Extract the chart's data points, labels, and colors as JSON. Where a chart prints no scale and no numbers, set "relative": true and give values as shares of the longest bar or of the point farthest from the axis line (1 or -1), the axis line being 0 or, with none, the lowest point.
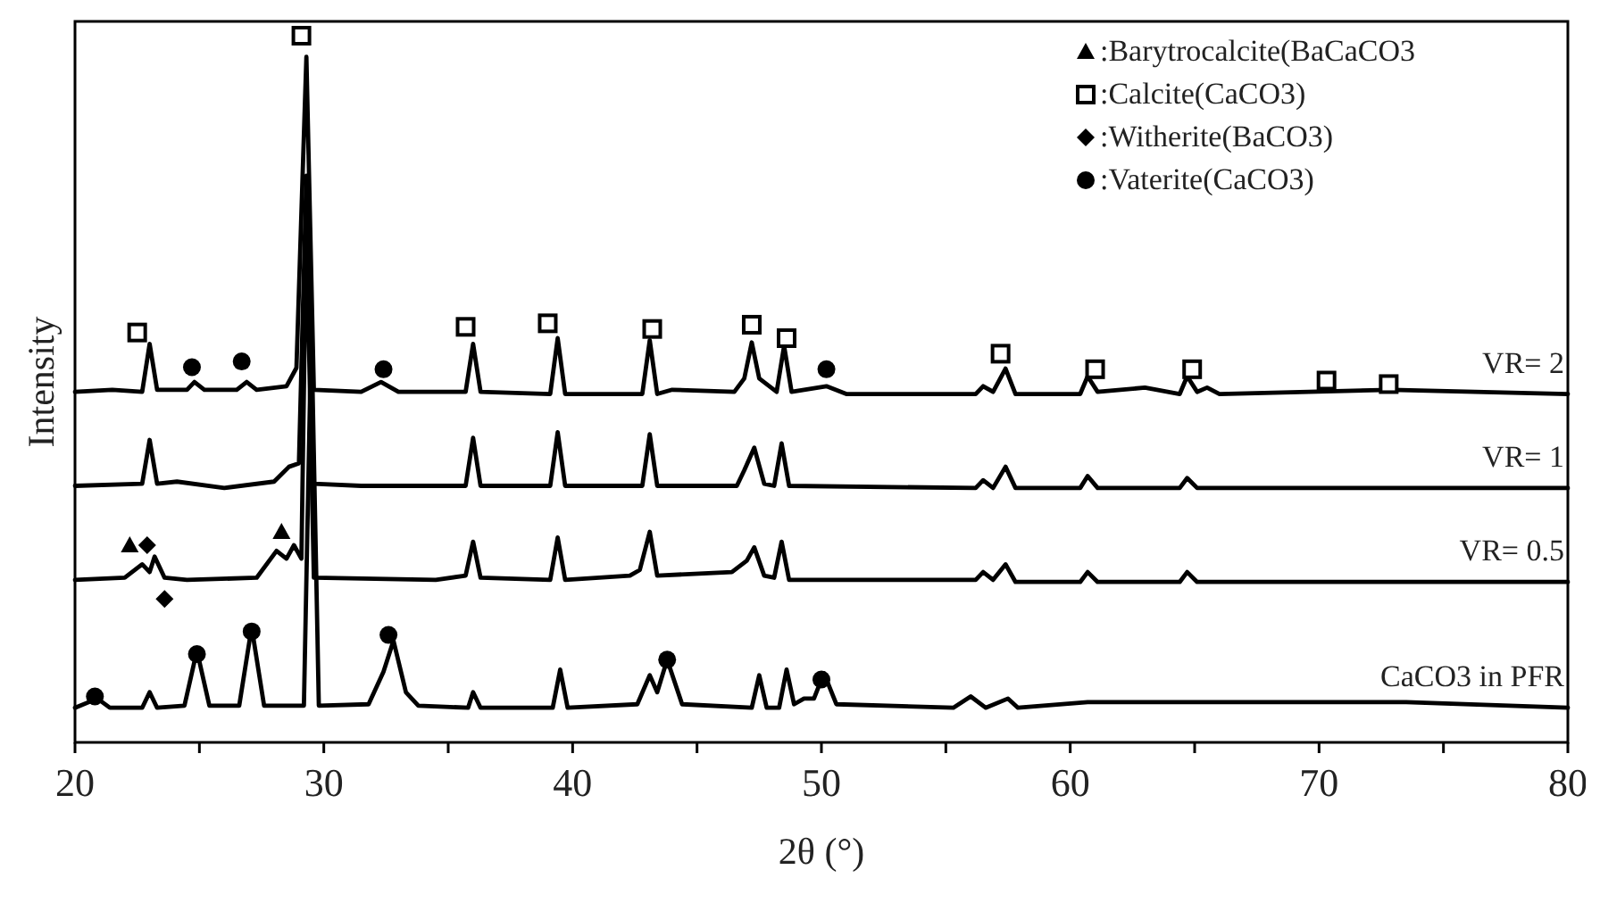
{
  "chart_data": {
    "type": "line",
    "relative": true,
    "xlabel": "2θ (°)",
    "ylabel": "Intensity",
    "xlim": [
      20,
      80
    ],
    "xticks": [
      20,
      {
        "value": 25,
        "label": null
      },
      30,
      {
        "value": 35,
        "label": null
      },
      40,
      {
        "value": 45,
        "label": null
      },
      50,
      {
        "value": 55,
        "label": null
      },
      60,
      {
        "value": 65,
        "label": null
      },
      70,
      {
        "value": 75,
        "label": null
      },
      80
    ],
    "grid": false,
    "legend": "top right",
    "line_style": "solid",
    "series": [
      {
        "name": "VR= 2",
        "color": "#000000",
        "x": [
          20,
          21.5,
          22.7,
          23.0,
          23.3,
          24.5,
          24.8,
          25.2,
          26.5,
          26.9,
          27.3,
          28.5,
          28.9,
          29.3,
          29.6,
          31.5,
          32.3,
          33,
          35.7,
          36.0,
          36.3,
          39.1,
          39.4,
          39.7,
          42.8,
          43.1,
          43.4,
          44,
          46.5,
          46.9,
          47.2,
          47.5,
          48.2,
          48.5,
          48.8,
          50.2,
          51,
          56.2,
          56.5,
          56.9,
          57.4,
          57.8,
          60.4,
          60.7,
          61.1,
          63,
          64.4,
          64.7,
          65.1,
          65.5,
          66,
          72.9,
          80
        ],
        "values": [
          0.496,
          0.499,
          0.496,
          0.564,
          0.499,
          0.499,
          0.51,
          0.499,
          0.499,
          0.51,
          0.499,
          0.504,
          0.53,
          0.97,
          0.499,
          0.496,
          0.51,
          0.496,
          0.496,
          0.564,
          0.496,
          0.493,
          0.572,
          0.493,
          0.493,
          0.569,
          0.493,
          0.499,
          0.496,
          0.515,
          0.566,
          0.515,
          0.496,
          0.561,
          0.496,
          0.504,
          0.493,
          0.493,
          0.504,
          0.496,
          0.529,
          0.493,
          0.493,
          0.518,
          0.496,
          0.502,
          0.493,
          0.518,
          0.496,
          0.502,
          0.493,
          0.499,
          0.493
        ]
      },
      {
        "name": "VR= 1",
        "color": "#000000",
        "x": [
          20,
          22.7,
          23.0,
          23.3,
          24.1,
          26,
          28.0,
          28.6,
          29.0,
          29.3,
          29.6,
          31.5,
          35.7,
          36.0,
          36.3,
          39.1,
          39.4,
          39.7,
          42.8,
          43.1,
          43.4,
          46.6,
          46.9,
          47.3,
          47.7,
          48.1,
          48.4,
          48.7,
          56.2,
          56.5,
          56.9,
          57.4,
          57.8,
          60.4,
          60.7,
          61.1,
          64.4,
          64.7,
          65.1,
          80
        ],
        "values": [
          0.363,
          0.366,
          0.428,
          0.366,
          0.369,
          0.36,
          0.369,
          0.39,
          0.395,
          0.802,
          0.366,
          0.363,
          0.363,
          0.431,
          0.363,
          0.363,
          0.439,
          0.363,
          0.363,
          0.436,
          0.363,
          0.363,
          0.385,
          0.417,
          0.366,
          0.363,
          0.423,
          0.363,
          0.36,
          0.371,
          0.36,
          0.39,
          0.36,
          0.36,
          0.377,
          0.36,
          0.36,
          0.374,
          0.36,
          0.36
        ]
      },
      {
        "name": "VR= 0.5",
        "color": "#000000",
        "x": [
          20,
          22.0,
          22.7,
          23.0,
          23.2,
          23.6,
          24.5,
          27.3,
          28.1,
          28.5,
          28.8,
          29.1,
          29.3,
          29.6,
          34.5,
          35.7,
          36.0,
          36.3,
          39.1,
          39.4,
          39.7,
          42.3,
          42.7,
          43.1,
          43.4,
          46.4,
          47.0,
          47.3,
          47.7,
          48.1,
          48.4,
          48.7,
          56.2,
          56.5,
          56.9,
          57.4,
          57.8,
          60.4,
          60.7,
          61.1,
          64.4,
          64.7,
          65.1,
          80
        ],
        "values": [
          0.23,
          0.233,
          0.252,
          0.241,
          0.263,
          0.233,
          0.23,
          0.233,
          0.271,
          0.26,
          0.279,
          0.26,
          0.737,
          0.233,
          0.23,
          0.236,
          0.284,
          0.233,
          0.23,
          0.29,
          0.23,
          0.236,
          0.244,
          0.298,
          0.236,
          0.241,
          0.257,
          0.276,
          0.236,
          0.233,
          0.284,
          0.23,
          0.23,
          0.241,
          0.23,
          0.252,
          0.227,
          0.227,
          0.241,
          0.227,
          0.227,
          0.241,
          0.227,
          0.227
        ]
      },
      {
        "name": "CaCO3 in PFR",
        "color": "#000000",
        "x": [
          20,
          20.9,
          21.4,
          22.7,
          23.0,
          23.3,
          24.4,
          24.9,
          25.4,
          26.6,
          27.1,
          27.6,
          29.2,
          29.5,
          29.8,
          31.8,
          32.4,
          32.8,
          33.3,
          33.8,
          35.8,
          36.0,
          36.3,
          39.2,
          39.5,
          39.8,
          42.6,
          43.1,
          43.4,
          43.8,
          44.4,
          47.2,
          47.5,
          47.8,
          48.3,
          48.6,
          48.9,
          49.3,
          49.7,
          50.1,
          50.6,
          55.3,
          56.0,
          56.6,
          57.5,
          57.9,
          60.7,
          64.7,
          73.5,
          80
        ],
        "values": [
          0.049,
          0.062,
          0.049,
          0.049,
          0.071,
          0.049,
          0.052,
          0.13,
          0.052,
          0.052,
          0.163,
          0.052,
          0.052,
          0.585,
          0.052,
          0.054,
          0.1,
          0.144,
          0.071,
          0.052,
          0.049,
          0.071,
          0.049,
          0.049,
          0.103,
          0.049,
          0.054,
          0.095,
          0.071,
          0.117,
          0.054,
          0.049,
          0.095,
          0.049,
          0.049,
          0.103,
          0.054,
          0.062,
          0.062,
          0.098,
          0.054,
          0.049,
          0.065,
          0.049,
          0.062,
          0.049,
          0.057,
          0.057,
          0.057,
          0.049
        ]
      },
      {
        "name": ":Barytrocalcite(BaCaCO3",
        "type": "scatter",
        "color": "#000000",
        "marker": "triangle",
        "x": [
          22.2,
          28.3
        ],
        "values": [
          0.279,
          0.298
        ]
      },
      {
        "name": ":Calcite(CaCO3)",
        "type": "scatter",
        "color": "#000000",
        "marker": "square",
        "x": [
          22.5,
          29.1,
          35.7,
          39.0,
          43.2,
          47.2,
          48.6,
          57.2,
          61.0,
          64.9,
          70.3,
          72.8
        ],
        "values": [
          0.58,
          1.0,
          0.588,
          0.593,
          0.585,
          0.591,
          0.572,
          0.55,
          0.528,
          0.528,
          0.512,
          0.507
        ]
      },
      {
        "name": ":Witherite(BaCO3)",
        "type": "scatter",
        "color": "#000000",
        "marker": "diamond",
        "x": [
          22.9,
          23.6
        ],
        "values": [
          0.279,
          0.203
        ]
      },
      {
        "name": ":Vaterite(CaCO3)",
        "type": "scatter",
        "color": "#000000",
        "marker": "circle",
        "x": [
          24.7,
          26.7,
          32.4,
          50.2,
          20.8,
          24.9,
          27.1,
          32.6,
          43.8,
          50.0
        ],
        "values": [
          0.531,
          0.539,
          0.528,
          0.528,
          0.065,
          0.125,
          0.157,
          0.152,
          0.117,
          0.089
        ]
      }
    ]
  }
}
